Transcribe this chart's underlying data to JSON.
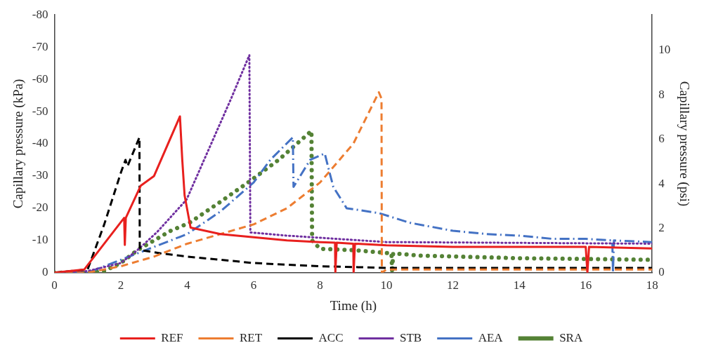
{
  "chart_data": {
    "type": "line",
    "xlabel": "Time (h)",
    "ylabel": "Capillary pressure (kPa)",
    "y2label": "Capillary pressure (psi)",
    "xlim": [
      0,
      18
    ],
    "xticks": [
      0,
      2,
      4,
      6,
      8,
      10,
      12,
      14,
      16,
      18
    ],
    "ylim": [
      0,
      -80
    ],
    "yticks": [
      0,
      -10,
      -20,
      -30,
      -40,
      -50,
      -60,
      -70,
      -80
    ],
    "y2lim": [
      0,
      11.6
    ],
    "y2ticks": [
      0,
      2,
      4,
      6,
      8,
      10
    ],
    "grid": false,
    "legend": "bottom",
    "marker": "none",
    "series": [
      {
        "name": "REF",
        "color": "#e8201e",
        "line_style": "solid",
        "x": [
          0,
          0.9,
          1.5,
          2.1,
          2.12,
          2.15,
          2.6,
          3.0,
          3.78,
          3.85,
          3.92,
          4.1,
          5,
          6,
          7,
          8,
          8.45,
          8.46,
          8.5,
          9,
          9.01,
          9.05,
          10,
          12,
          14,
          16,
          16.05,
          16.1,
          18
        ],
        "values": [
          0,
          -1,
          -9,
          -17,
          -8.6,
          -17,
          -27,
          -30,
          -48.5,
          -35,
          -24,
          -14,
          -12,
          -11,
          -10,
          -9.5,
          -9.3,
          0,
          -9.3,
          -9,
          0,
          -9,
          -8.5,
          -8,
          -8,
          -8,
          0,
          -8,
          -7.5
        ]
      },
      {
        "name": "RET",
        "color": "#ed7d31",
        "line_style": "dashed",
        "x": [
          0,
          1,
          2,
          3,
          4,
          5,
          6,
          7,
          8,
          9,
          9.77,
          9.85,
          9.86,
          10,
          18
        ],
        "values": [
          0,
          0,
          -2,
          -5,
          -9,
          -12,
          -15,
          -20,
          -28,
          -40,
          -56,
          -54,
          0,
          -1,
          -1
        ]
      },
      {
        "name": "ACC",
        "color": "#000000",
        "line_style": "dashed",
        "x": [
          0,
          1,
          1.5,
          2.0,
          2.14,
          2.2,
          2.56,
          2.57,
          2.6,
          3.2,
          4,
          6,
          8,
          10,
          18
        ],
        "values": [
          0,
          -1,
          -15,
          -31,
          -35,
          -33,
          -42,
          -8,
          -7,
          -6,
          -5,
          -3,
          -2,
          -1.5,
          -1.5
        ]
      },
      {
        "name": "STB",
        "color": "#7030a0",
        "line_style": "dotted",
        "x": [
          0,
          1,
          2,
          2.5,
          3.1,
          3.98,
          5.32,
          5.87,
          5.9,
          7,
          10,
          18
        ],
        "values": [
          0,
          -0.5,
          -3,
          -7,
          -12.7,
          -22.7,
          -54,
          -67.5,
          -12.5,
          -11.5,
          -9.5,
          -9
        ]
      },
      {
        "name": "AEA",
        "color": "#4472c4",
        "line_style": "dashdot",
        "x": [
          0,
          1,
          1.5,
          2,
          3,
          4,
          5,
          6,
          6.5,
          7.18,
          7.2,
          7.7,
          8.14,
          8.3,
          8.4,
          8.8,
          9.77,
          10.7,
          12,
          13,
          14,
          15,
          16,
          16.8,
          16.82,
          16.85,
          18
        ],
        "values": [
          0,
          0,
          -2,
          -4,
          -8,
          -12,
          -19,
          -28,
          -35,
          -42,
          -26.6,
          -35,
          -37,
          -30.5,
          -26.6,
          -20,
          -18.5,
          -15.5,
          -13,
          -12,
          -11.5,
          -10.5,
          -10.5,
          -10,
          0,
          -10,
          -9.5
        ]
      },
      {
        "name": "SRA",
        "color": "#548235",
        "line_style": "dotted",
        "x": [
          0,
          1,
          1.5,
          2,
          2.5,
          3,
          3.5,
          4.07,
          5,
          5.9,
          6.75,
          7.74,
          7.76,
          8,
          9,
          10.15,
          10.17,
          10.2,
          11,
          14,
          18
        ],
        "values": [
          0,
          0,
          -0.5,
          -3,
          -7,
          -10,
          -13,
          -15.5,
          -22,
          -28.5,
          -35,
          -44,
          -10,
          -7.4,
          -7,
          -6,
          0,
          -6,
          -5.3,
          -4.5,
          -4
        ]
      }
    ]
  }
}
